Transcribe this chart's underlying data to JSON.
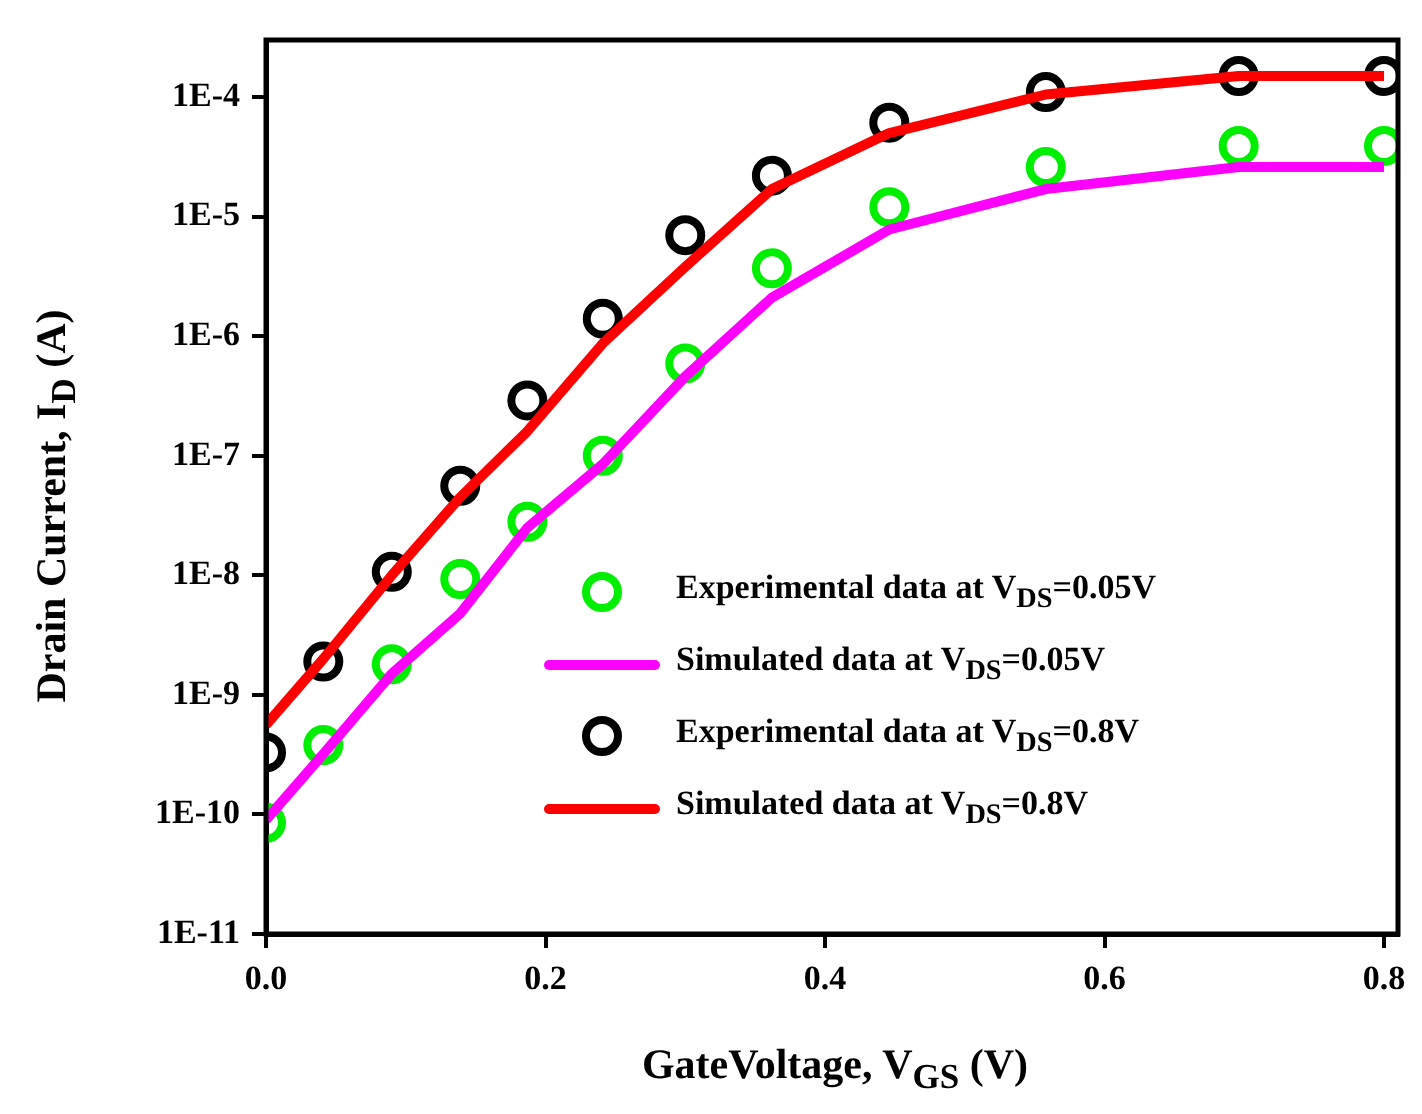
{
  "chart_data": {
    "type": "line",
    "xlabel": "GateVoltage, V$_{GS}$ (V)",
    "ylabel": "Drain Current, I$_{D}$ (A)",
    "log": "y",
    "grid": false,
    "legend": "bottom right",
    "xlim": [
      0,
      0.81
    ],
    "ylim": [
      1e-11,
      0.0003
    ],
    "xticks": [
      {
        "value": 0,
        "label": "0.0"
      },
      {
        "value": 0.2,
        "label": "0.2"
      },
      {
        "value": 0.4,
        "label": "0.4"
      },
      {
        "value": 0.6,
        "label": "0.6"
      },
      {
        "value": 0.8,
        "label": "0.8"
      }
    ],
    "yticks": [
      {
        "value": 1e-11,
        "label": "1E-11"
      },
      {
        "value": 1e-10,
        "label": "1E-10"
      },
      {
        "value": 1e-09,
        "label": "1E-9"
      },
      {
        "value": 1e-08,
        "label": "1E-8"
      },
      {
        "value": 1e-07,
        "label": "1E-7"
      },
      {
        "value": 1e-06,
        "label": "1E-6"
      },
      {
        "value": 1e-05,
        "label": "1E-5"
      },
      {
        "value": 0.0001,
        "label": "1E-4"
      }
    ],
    "x": [
      0,
      0.041,
      0.09,
      0.139,
      0.187,
      0.241,
      0.3,
      0.362,
      0.446,
      0.558,
      0.696,
      0.8
    ],
    "series": [
      {
        "name": "Experimental data at V$_{DS}$=0.05V",
        "type": "scatter",
        "marker": "circle",
        "color": "#00ee00",
        "values": [
          8.5e-11,
          3.8e-10,
          1.8e-09,
          9.3e-09,
          2.8e-08,
          1e-07,
          5.9e-07,
          3.7e-06,
          1.2e-05,
          2.6e-05,
          3.9e-05,
          3.9e-05
        ]
      },
      {
        "name": "Simulated data at V$_{DS}$=0.05V",
        "type": "line",
        "marker": "none",
        "line_style": "solid",
        "color": "#ff00ff",
        "values": [
          9e-11,
          3.2e-10,
          1.5e-09,
          4.8e-09,
          2.5e-08,
          8.5e-08,
          4.6e-07,
          2.1e-06,
          7.8e-06,
          1.7e-05,
          2.6e-05,
          2.6e-05
        ]
      },
      {
        "name": "Experimental data at V$_{DS}$=0.8V",
        "type": "scatter",
        "marker": "circle",
        "color": "#000000",
        "values": [
          3.3e-10,
          1.9e-09,
          1.07e-08,
          5.6e-08,
          2.9e-07,
          1.4e-06,
          7e-06,
          2.2e-05,
          6.1e-05,
          0.00011,
          0.00015,
          0.00015
        ]
      },
      {
        "name": "Simulated data at V$_{DS}$=0.8V",
        "type": "line",
        "marker": "none",
        "line_style": "solid",
        "color": "#ff0000",
        "values": [
          5.6e-10,
          2e-09,
          1e-08,
          4.5e-08,
          1.6e-07,
          8.7e-07,
          3.8e-06,
          1.7e-05,
          5e-05,
          0.000105,
          0.00015,
          0.00015
        ]
      }
    ]
  }
}
